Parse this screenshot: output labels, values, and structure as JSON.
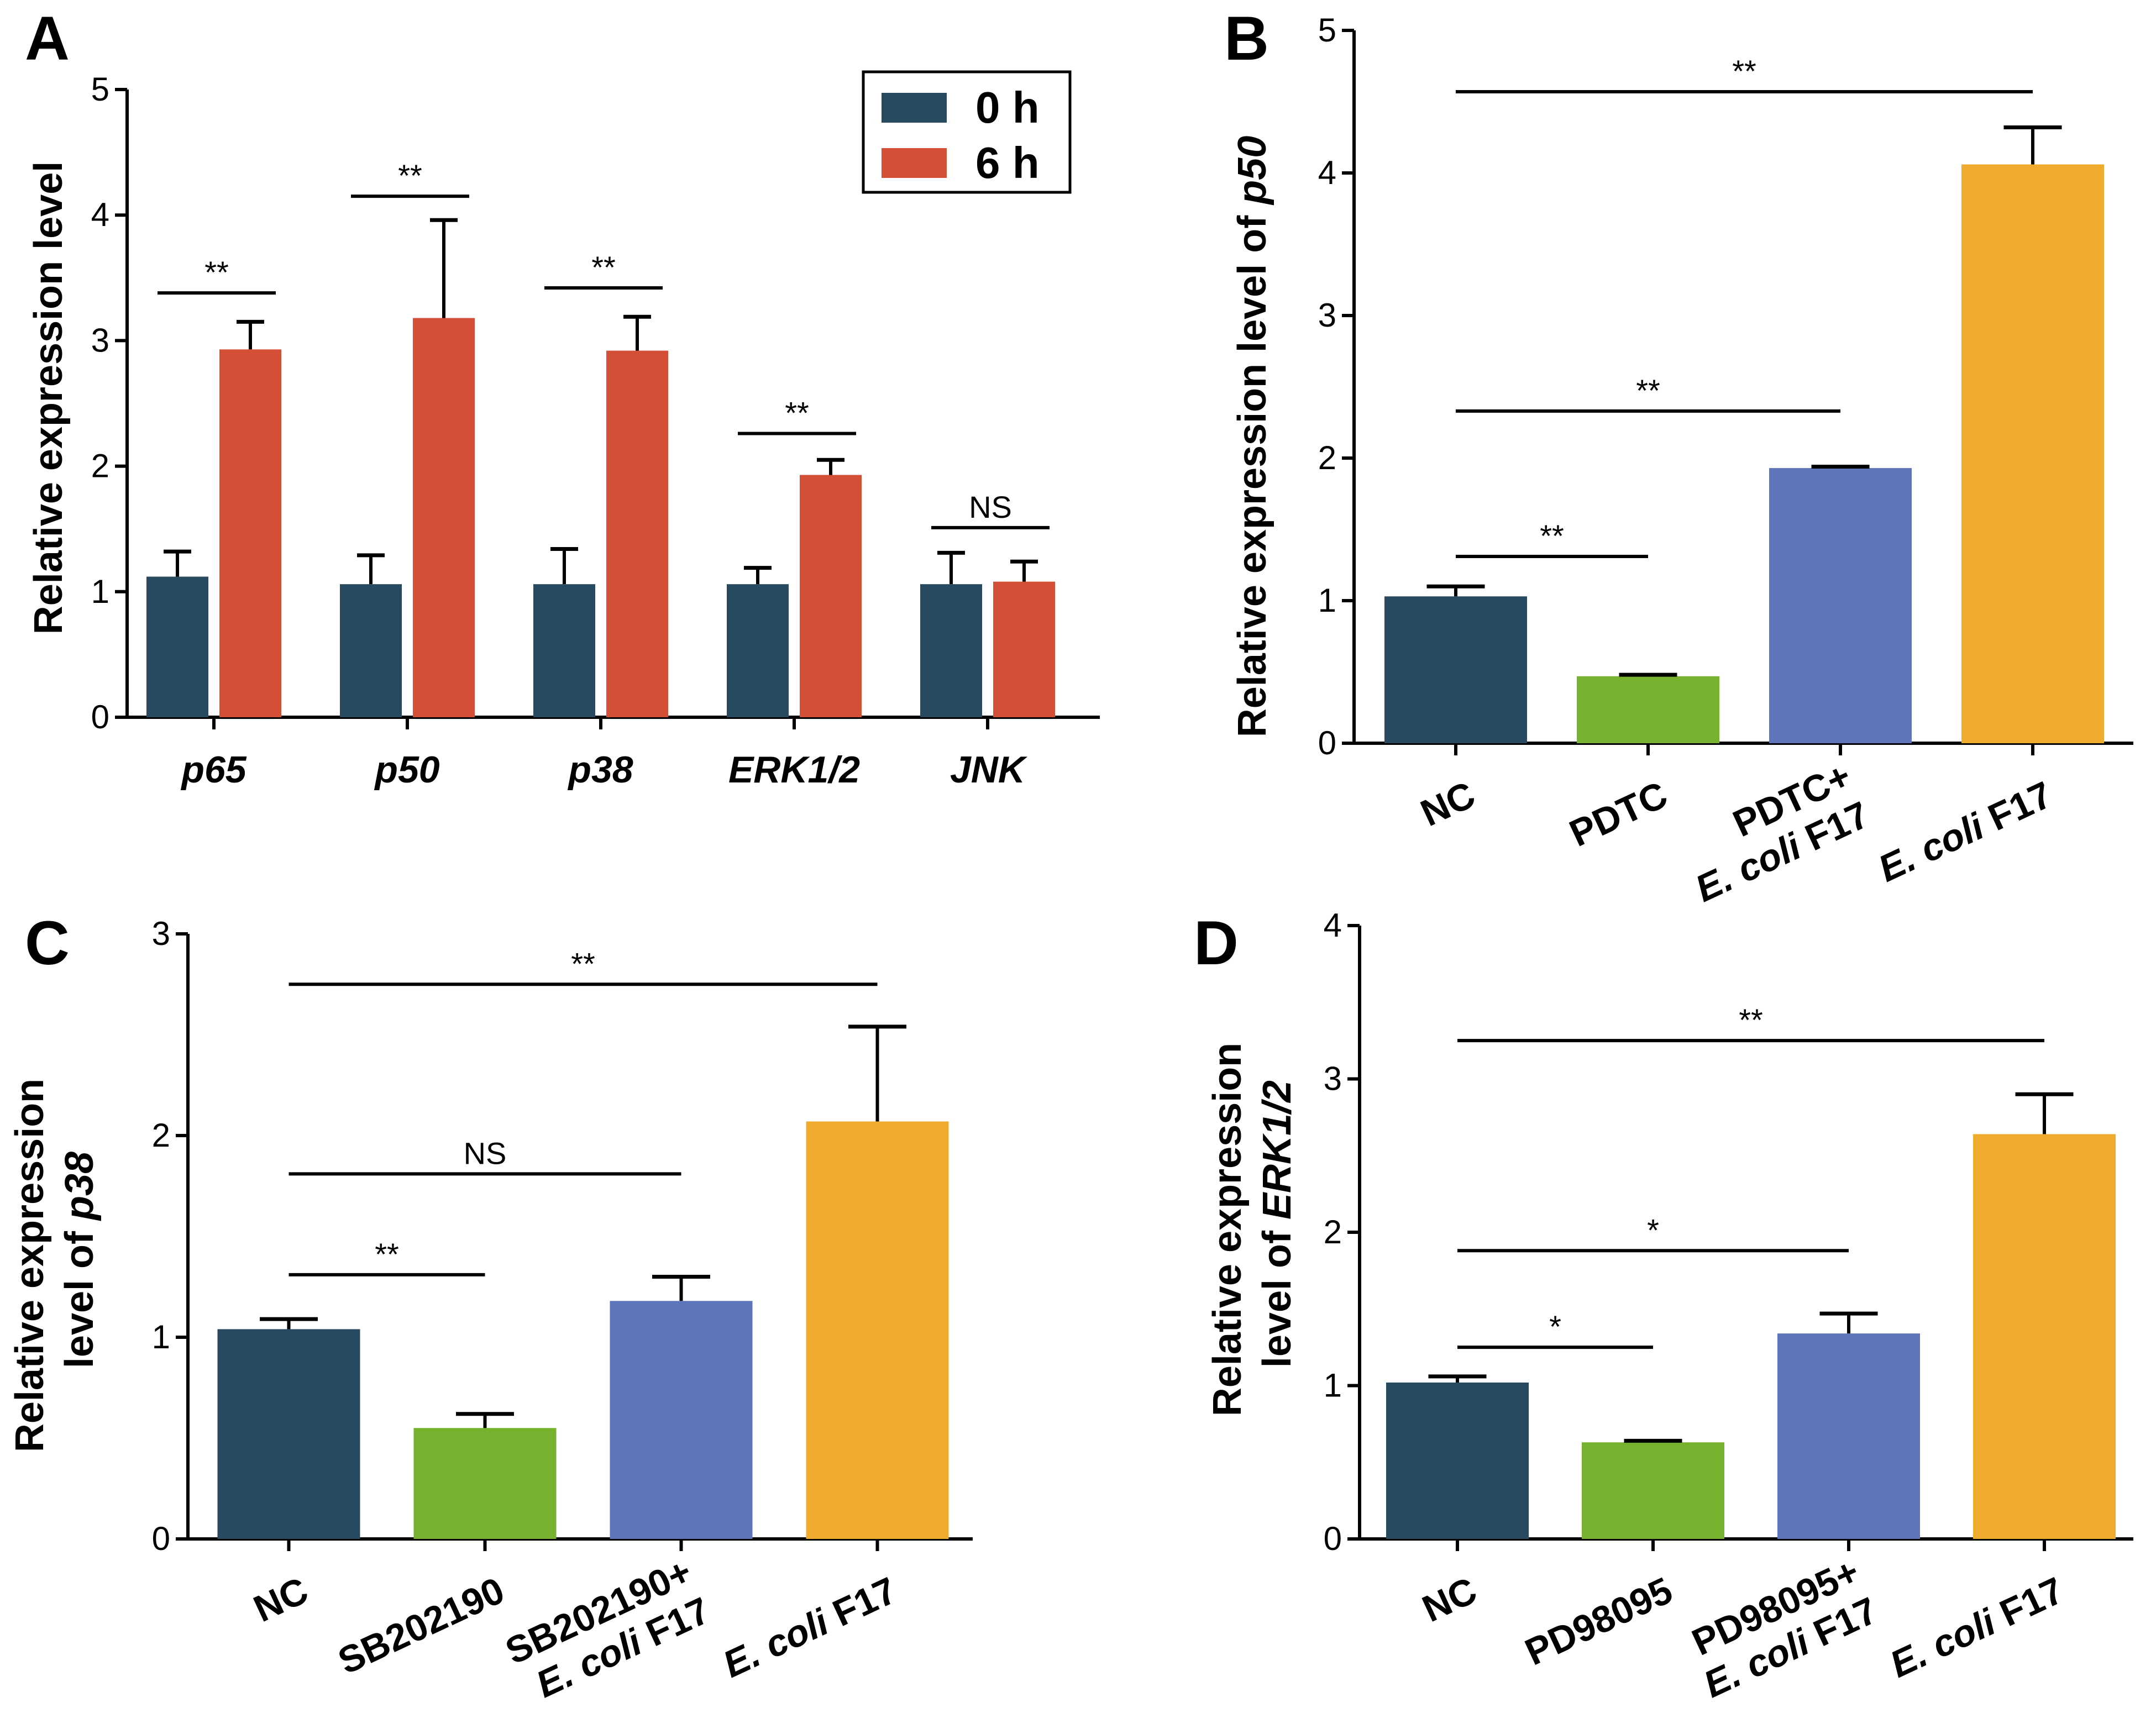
{
  "colors": {
    "navy": "#274a60",
    "red": "#d34f35",
    "green": "#77b22e",
    "blue": "#5e75b9",
    "orange": "#efab2e"
  },
  "chart_data": [
    {
      "panel": "A",
      "type": "bar",
      "ylabel": "Relative expression level",
      "ylim": [
        0,
        5
      ],
      "yticks": [
        "0",
        "1",
        "2",
        "3",
        "4",
        "5"
      ],
      "categories": [
        "p65",
        "p50",
        "p38",
        "ERK1/2",
        "JNK"
      ],
      "categories_italic": true,
      "legend_position": "top-right",
      "series": [
        {
          "name": "0 h",
          "color": "#274a60",
          "values": [
            1.12,
            1.06,
            1.06,
            1.06,
            1.06
          ],
          "errors": [
            0.2,
            0.23,
            0.28,
            0.13,
            0.25
          ]
        },
        {
          "name": "6 h",
          "color": "#d34f35",
          "values": [
            2.93,
            3.18,
            2.92,
            1.93,
            1.08
          ],
          "errors": [
            0.22,
            0.78,
            0.27,
            0.12,
            0.16
          ]
        }
      ],
      "significance": [
        {
          "group": 0,
          "label": "**",
          "y": 3.38
        },
        {
          "group": 1,
          "label": "**",
          "y": 4.15
        },
        {
          "group": 2,
          "label": "**",
          "y": 3.42
        },
        {
          "group": 3,
          "label": "**",
          "y": 2.26
        },
        {
          "group": 4,
          "label": "NS",
          "y": 1.51
        }
      ]
    },
    {
      "panel": "B",
      "type": "bar",
      "ylabel_prefix": "Relative expression level of ",
      "ylabel_italic": "p50",
      "ylim": [
        0,
        5
      ],
      "yticks": [
        "0",
        "1",
        "2",
        "3",
        "4",
        "5"
      ],
      "categories": [
        {
          "lines": [
            [
              {
                "t": "NC"
              }
            ]
          ]
        },
        {
          "lines": [
            [
              {
                "t": "PDTC"
              }
            ]
          ]
        },
        {
          "lines": [
            [
              {
                "t": "PDTC+"
              }
            ],
            [
              {
                "t": "E. coli",
                "i": true
              },
              {
                "t": " F17"
              }
            ]
          ]
        },
        {
          "lines": [
            [
              {
                "t": "E. coli",
                "i": true
              },
              {
                "t": " F17"
              }
            ]
          ]
        }
      ],
      "values": [
        1.03,
        0.47,
        1.93,
        4.06
      ],
      "errors": [
        0.07,
        0.01,
        0.01,
        0.26
      ],
      "colors": [
        "#274a60",
        "#77b22e",
        "#5e75b9",
        "#efab2e"
      ],
      "significance": [
        {
          "from": 0,
          "to": 1,
          "label": "**",
          "y": 1.31
        },
        {
          "from": 0,
          "to": 2,
          "label": "**",
          "y": 2.33
        },
        {
          "from": 0,
          "to": 3,
          "label": "**",
          "y": 4.57
        }
      ]
    },
    {
      "panel": "C",
      "type": "bar",
      "ylabel_line1": "Relative expression",
      "ylabel_line2_prefix": "level of ",
      "ylabel_italic": "p38",
      "ylim": [
        0,
        3
      ],
      "yticks": [
        "0",
        "1",
        "2",
        "3"
      ],
      "categories": [
        {
          "lines": [
            [
              {
                "t": "NC"
              }
            ]
          ]
        },
        {
          "lines": [
            [
              {
                "t": "SB202190"
              }
            ]
          ]
        },
        {
          "lines": [
            [
              {
                "t": "SB202190+"
              }
            ],
            [
              {
                "t": "E. coli",
                "i": true
              },
              {
                "t": " F17"
              }
            ]
          ]
        },
        {
          "lines": [
            [
              {
                "t": "E. coli",
                "i": true
              },
              {
                "t": " F17"
              }
            ]
          ]
        }
      ],
      "values": [
        1.04,
        0.55,
        1.18,
        2.07
      ],
      "errors": [
        0.05,
        0.07,
        0.12,
        0.47
      ],
      "colors": [
        "#274a60",
        "#77b22e",
        "#5e75b9",
        "#efab2e"
      ],
      "significance": [
        {
          "from": 0,
          "to": 1,
          "label": "**",
          "y": 1.31
        },
        {
          "from": 0,
          "to": 2,
          "label": "NS",
          "y": 1.81
        },
        {
          "from": 0,
          "to": 3,
          "label": "**",
          "y": 2.75
        }
      ]
    },
    {
      "panel": "D",
      "type": "bar",
      "ylabel_line1": "Relative expression",
      "ylabel_line2_prefix": "level of ",
      "ylabel_italic": "ERK1/2",
      "ylim": [
        0,
        4
      ],
      "yticks": [
        "0",
        "1",
        "2",
        "3",
        "4"
      ],
      "categories": [
        {
          "lines": [
            [
              {
                "t": "NC"
              }
            ]
          ]
        },
        {
          "lines": [
            [
              {
                "t": "PD98095"
              }
            ]
          ]
        },
        {
          "lines": [
            [
              {
                "t": "PD98095+"
              }
            ],
            [
              {
                "t": "E. coli",
                "i": true
              },
              {
                "t": " F17"
              }
            ]
          ]
        },
        {
          "lines": [
            [
              {
                "t": "E. coli",
                "i": true
              },
              {
                "t": " F17"
              }
            ]
          ]
        }
      ],
      "values": [
        1.02,
        0.63,
        1.34,
        2.64
      ],
      "errors": [
        0.04,
        0.01,
        0.13,
        0.26
      ],
      "colors": [
        "#274a60",
        "#77b22e",
        "#5e75b9",
        "#efab2e"
      ],
      "significance": [
        {
          "from": 0,
          "to": 1,
          "label": "*",
          "y": 1.25
        },
        {
          "from": 0,
          "to": 2,
          "label": "*",
          "y": 1.88
        },
        {
          "from": 0,
          "to": 3,
          "label": "**",
          "y": 3.25
        }
      ]
    }
  ]
}
